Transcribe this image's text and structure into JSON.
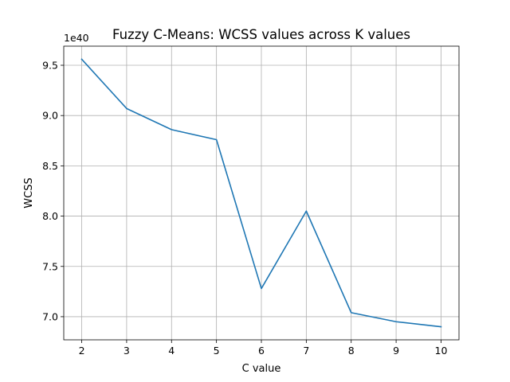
{
  "chart_data": {
    "type": "line",
    "title": "Fuzzy C-Means: WCSS values across K values",
    "xlabel": "C value",
    "ylabel": "WCSS",
    "y_offset_label": "1e40",
    "x": [
      2,
      3,
      4,
      5,
      6,
      7,
      8,
      9,
      10
    ],
    "series": [
      {
        "values": [
          9.56,
          9.07,
          8.86,
          8.76,
          7.28,
          8.05,
          7.04,
          6.95,
          6.9
        ],
        "color": "#1f77b4"
      }
    ],
    "xlim": [
      1.6,
      10.4
    ],
    "ylim": [
      6.77,
      9.69
    ],
    "xticks": [
      2,
      3,
      4,
      5,
      6,
      7,
      8,
      9,
      10
    ],
    "yticks": [
      7.0,
      7.5,
      8.0,
      8.5,
      9.0,
      9.5
    ],
    "ytick_labels": [
      "7.0",
      "7.5",
      "8.0",
      "8.5",
      "9.0",
      "9.5"
    ],
    "grid": true
  }
}
